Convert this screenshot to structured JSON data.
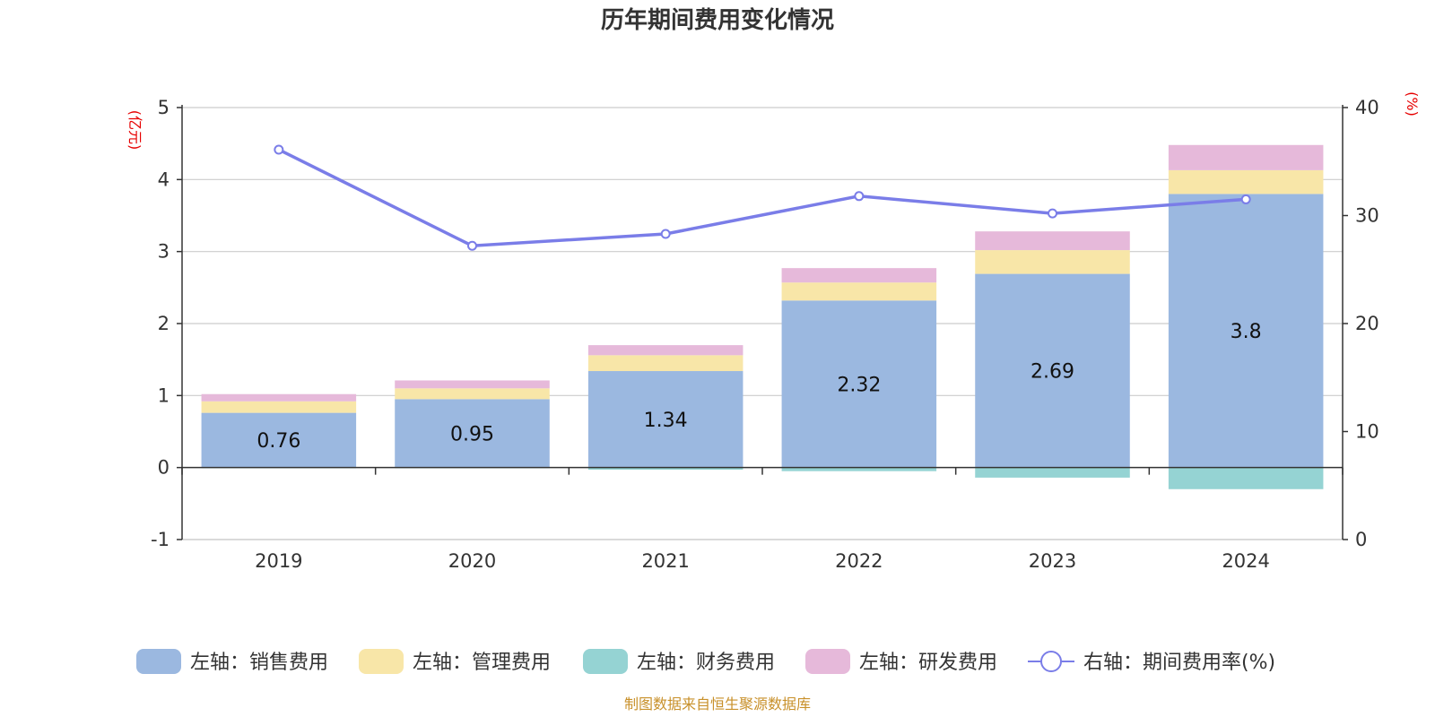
{
  "chart_data": {
    "type": "bar",
    "title": "历年期间费用变化情况",
    "categories": [
      "2019",
      "2020",
      "2021",
      "2022",
      "2023",
      "2024"
    ],
    "left_axis": {
      "unit": "(亿元)",
      "ylim": [
        -1,
        5
      ],
      "ticks": [
        "-1",
        "0",
        "1",
        "2",
        "3",
        "4",
        "5"
      ]
    },
    "right_axis": {
      "unit": "(%)",
      "ylim": [
        0,
        40
      ],
      "ticks": [
        "0",
        "10",
        "20",
        "30",
        "40"
      ]
    },
    "grid": true,
    "stacked": true,
    "series": [
      {
        "name": "左轴：销售费用",
        "axis": "left",
        "color": "#9bb8e0",
        "values": [
          0.76,
          0.95,
          1.34,
          2.32,
          2.69,
          3.8
        ],
        "labels": [
          "0.76",
          "0.95",
          "1.34",
          "2.32",
          "2.69",
          "3.8"
        ]
      },
      {
        "name": "左轴：管理费用",
        "axis": "left",
        "color": "#f8e6a8",
        "values": [
          0.16,
          0.15,
          0.22,
          0.25,
          0.33,
          0.33
        ]
      },
      {
        "name": "左轴：财务费用",
        "axis": "left",
        "color": "#95d3d3",
        "values": [
          -0.01,
          -0.01,
          -0.03,
          -0.05,
          -0.14,
          -0.3
        ]
      },
      {
        "name": "左轴：研发费用",
        "axis": "left",
        "color": "#e6b9da",
        "values": [
          0.1,
          0.11,
          0.14,
          0.2,
          0.26,
          0.35
        ]
      },
      {
        "name": "右轴：期间费用率(%)",
        "axis": "right",
        "type": "line",
        "color": "#7a7de8",
        "values": [
          36.1,
          27.2,
          28.3,
          31.8,
          30.2,
          31.5
        ]
      }
    ],
    "legend_position": "bottom",
    "source": "制图数据来自恒生聚源数据库"
  }
}
